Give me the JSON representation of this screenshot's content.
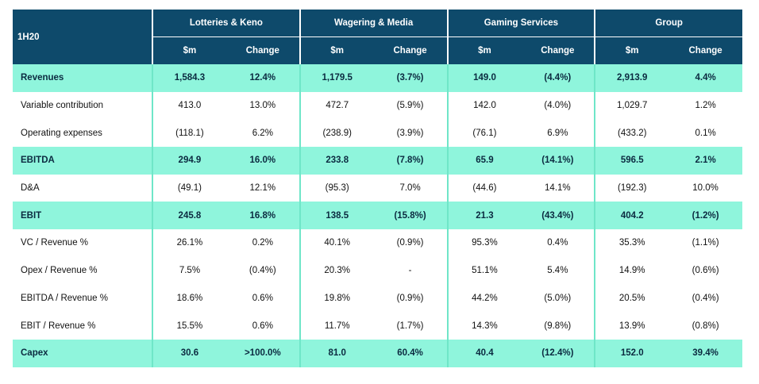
{
  "table": {
    "corner_label": "1H20",
    "segments": [
      "Lotteries & Keno",
      "Wagering & Media",
      "Gaming Services",
      "Group"
    ],
    "sub_headers": [
      "$m",
      "Change",
      "$m",
      "Change",
      "$m",
      "Change",
      "$m",
      "Change"
    ],
    "rows": [
      {
        "label": "Revenues",
        "highlight": true,
        "cells": [
          "1,584.3",
          "12.4%",
          "1,179.5",
          "(3.7%)",
          "149.0",
          "(4.4%)",
          "2,913.9",
          "4.4%"
        ]
      },
      {
        "label": "Variable contribution",
        "highlight": false,
        "cells": [
          "413.0",
          "13.0%",
          "472.7",
          "(5.9%)",
          "142.0",
          "(4.0%)",
          "1,029.7",
          "1.2%"
        ]
      },
      {
        "label": "Operating expenses",
        "highlight": false,
        "cells": [
          "(118.1)",
          "6.2%",
          "(238.9)",
          "(3.9%)",
          "(76.1)",
          "6.9%",
          "(433.2)",
          "0.1%"
        ]
      },
      {
        "label": "EBITDA",
        "highlight": true,
        "cells": [
          "294.9",
          "16.0%",
          "233.8",
          "(7.8%)",
          "65.9",
          "(14.1%)",
          "596.5",
          "2.1%"
        ]
      },
      {
        "label": "D&A",
        "highlight": false,
        "cells": [
          "(49.1)",
          "12.1%",
          "(95.3)",
          "7.0%",
          "(44.6)",
          "14.1%",
          "(192.3)",
          "10.0%"
        ]
      },
      {
        "label": "EBIT",
        "highlight": true,
        "cells": [
          "245.8",
          "16.8%",
          "138.5",
          "(15.8%)",
          "21.3",
          "(43.4%)",
          "404.2",
          "(1.2%)"
        ]
      },
      {
        "label": "VC / Revenue %",
        "highlight": false,
        "cells": [
          "26.1%",
          "0.2%",
          "40.1%",
          "(0.9%)",
          "95.3%",
          "0.4%",
          "35.3%",
          "(1.1%)"
        ]
      },
      {
        "label": "Opex / Revenue %",
        "highlight": false,
        "cells": [
          "7.5%",
          "(0.4%)",
          "20.3%",
          "-",
          "51.1%",
          "5.4%",
          "14.9%",
          "(0.6%)"
        ]
      },
      {
        "label": "EBITDA / Revenue %",
        "highlight": false,
        "cells": [
          "18.6%",
          "0.6%",
          "19.8%",
          "(0.9%)",
          "44.2%",
          "(5.0%)",
          "20.5%",
          "(0.4%)"
        ]
      },
      {
        "label": "EBIT / Revenue %",
        "highlight": false,
        "cells": [
          "15.5%",
          "0.6%",
          "11.7%",
          "(1.7%)",
          "14.3%",
          "(9.8%)",
          "13.9%",
          "(0.8%)"
        ]
      },
      {
        "label": "Capex",
        "highlight": true,
        "cells": [
          "30.6",
          ">100.0%",
          "81.0",
          "60.4%",
          "40.4",
          "(12.4%)",
          "152.0",
          "39.4%"
        ]
      }
    ],
    "colors": {
      "header_bg": "#0e4a6b",
      "highlight_bg": "#8ff5dc",
      "separator": "#6fe6c8"
    }
  }
}
